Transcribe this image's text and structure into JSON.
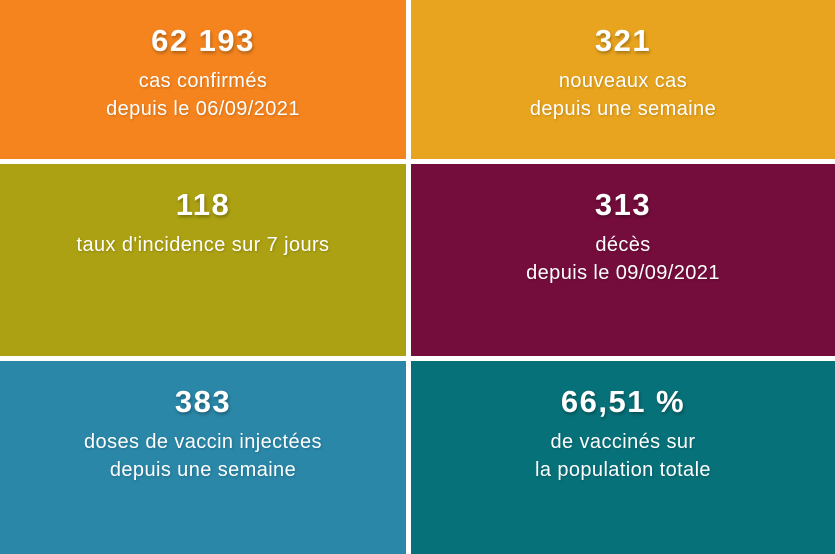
{
  "background": "#ffffff",
  "text_color": "#ffffff",
  "tiles": [
    {
      "id": "confirmed-cases",
      "value": "62 193",
      "lines": [
        "cas confirmés",
        "depuis le 06/09/2021"
      ],
      "color": "#f5841e"
    },
    {
      "id": "new-cases",
      "value": "321",
      "lines": [
        "nouveaux cas",
        "depuis une semaine"
      ],
      "color": "#e8a41e"
    },
    {
      "id": "incidence-rate",
      "value": "118",
      "lines": [
        "taux d'incidence sur 7 jours"
      ],
      "color": "#aca112"
    },
    {
      "id": "deaths",
      "value": "313",
      "lines": [
        "décès",
        "depuis le 09/09/2021"
      ],
      "color": "#740d3c"
    },
    {
      "id": "vaccine-doses",
      "value": "383",
      "lines": [
        "doses de vaccin injectées",
        "depuis une semaine"
      ],
      "color": "#2a87a8"
    },
    {
      "id": "vaccinated-percentage",
      "value": "66,51 %",
      "lines": [
        "de vaccinés sur",
        "la population totale"
      ],
      "color": "#077179"
    }
  ],
  "chart_data": {
    "type": "table",
    "layout": "2x3 grid of KPI tiles",
    "kpis": [
      {
        "value": 62193,
        "display": "62 193",
        "label": "cas confirmés depuis le 06/09/2021",
        "tile_color": "#f5841e"
      },
      {
        "value": 321,
        "display": "321",
        "label": "nouveaux cas depuis une semaine",
        "tile_color": "#e8a41e"
      },
      {
        "value": 118,
        "display": "118",
        "label": "taux d'incidence sur 7 jours",
        "tile_color": "#aca112"
      },
      {
        "value": 313,
        "display": "313",
        "label": "décès depuis le 09/09/2021",
        "tile_color": "#740d3c"
      },
      {
        "value": 383,
        "display": "383",
        "label": "doses de vaccin injectées depuis une semaine",
        "tile_color": "#2a87a8"
      },
      {
        "value": 66.51,
        "display": "66,51 %",
        "label": "de vaccinés sur la population totale",
        "tile_color": "#077179"
      }
    ]
  }
}
